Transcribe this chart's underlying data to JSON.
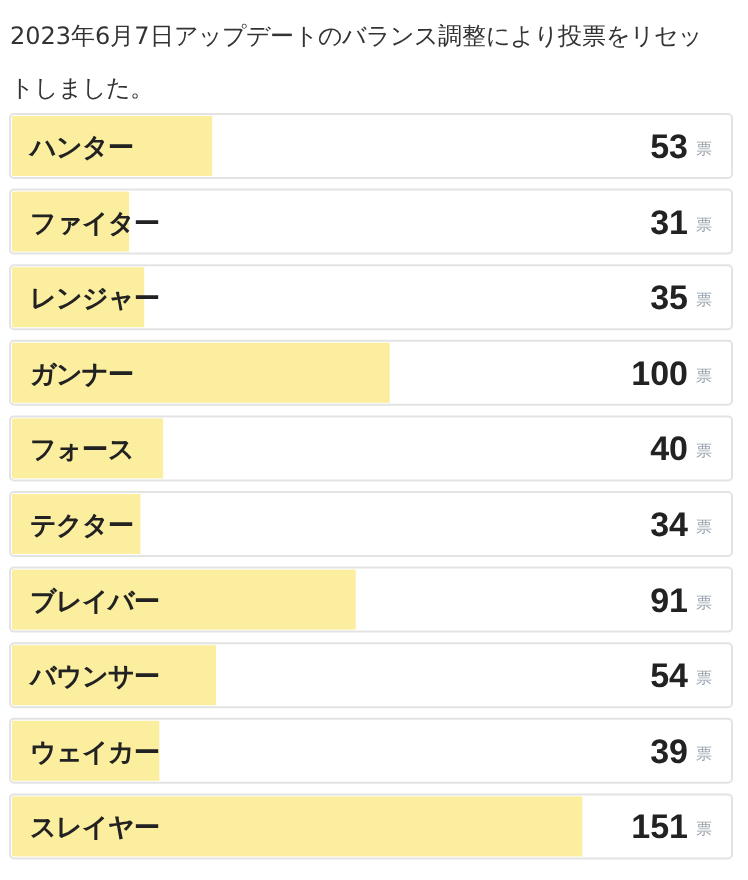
{
  "chart_data": {
    "type": "bar",
    "orientation": "horizontal",
    "title": "2023年6月7日アップデートのバランス調整により投票をリセットしました。",
    "categories": [
      "ハンター",
      "ファイター",
      "レンジャー",
      "ガンナー",
      "フォース",
      "テクター",
      "ブレイバー",
      "バウンサー",
      "ウェイカー",
      "スレイヤー"
    ],
    "values": [
      53,
      31,
      35,
      100,
      40,
      34,
      91,
      54,
      39,
      151
    ],
    "value_labels": [
      "53 票",
      "31 票",
      "35 票",
      "100 票",
      "40 票",
      "34 票",
      "91 票",
      "54 票",
      "39 票",
      "151 票"
    ],
    "color": "#fcee9f"
  }
}
